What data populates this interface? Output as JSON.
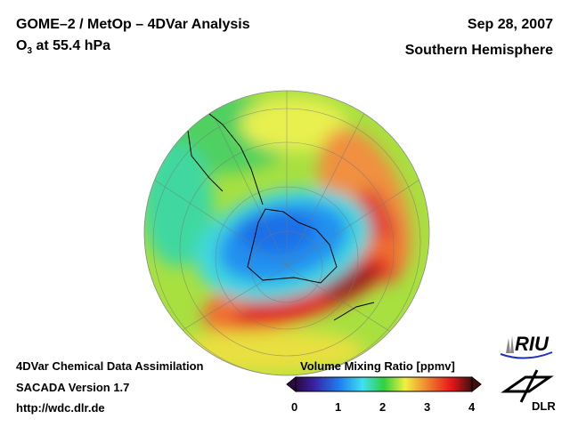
{
  "header": {
    "title": "GOME–2 / MetOp – 4DVar Analysis",
    "species_main": "O",
    "species_sub": "3",
    "level": " at 55.4 hPa",
    "date": "Sep 28, 2007",
    "region": "Southern Hemisphere"
  },
  "footer": {
    "line1": "4DVar Chemical Data Assimilation",
    "line2": "SACADA Version 1.7",
    "line3": "http://wdc.dlr.de"
  },
  "colorbar": {
    "title": "Volume Mixing Ratio [ppmv]",
    "min": 0,
    "max": 4,
    "ticks": [
      "0",
      "1",
      "2",
      "3",
      "4"
    ],
    "colors": [
      "#2a0a40",
      "#3a1fa0",
      "#1f7ff0",
      "#40e0f0",
      "#30d040",
      "#f0f040",
      "#f08030",
      "#e81818",
      "#401010"
    ]
  },
  "logos": {
    "riu": "RIU",
    "dlr": "DLR"
  }
}
